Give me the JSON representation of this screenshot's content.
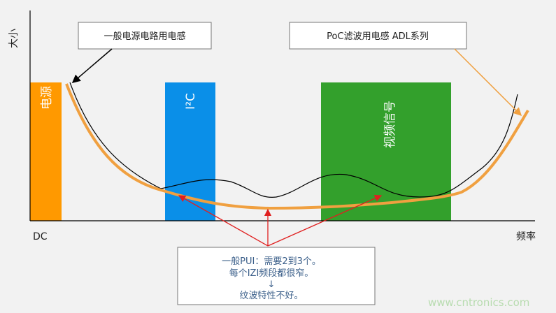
{
  "axes": {
    "y_label": "大小",
    "x_origin_label": "DC",
    "x_label": "频率"
  },
  "bands": [
    {
      "label": "电源",
      "color": "#ff9900"
    },
    {
      "label": "I²C",
      "color": "#0a8fe8"
    },
    {
      "label": "视频信号",
      "color": "#33a02c"
    }
  ],
  "callouts": {
    "general_inductor": "一般电源电路用电感",
    "poc_inductor": "PoC滤波用电感 ADL系列",
    "note_lines": [
      "一般PUI：需要2到3个。",
      "每个IZI频段都很窄。",
      "↓",
      "纹波特性不好。"
    ]
  },
  "colors": {
    "general_curve": "#000000",
    "poc_curve": "#f0a040",
    "note_arrows": "#e02020",
    "note_text": "#3b5f8a"
  },
  "watermark": "www.cntronics.com"
}
